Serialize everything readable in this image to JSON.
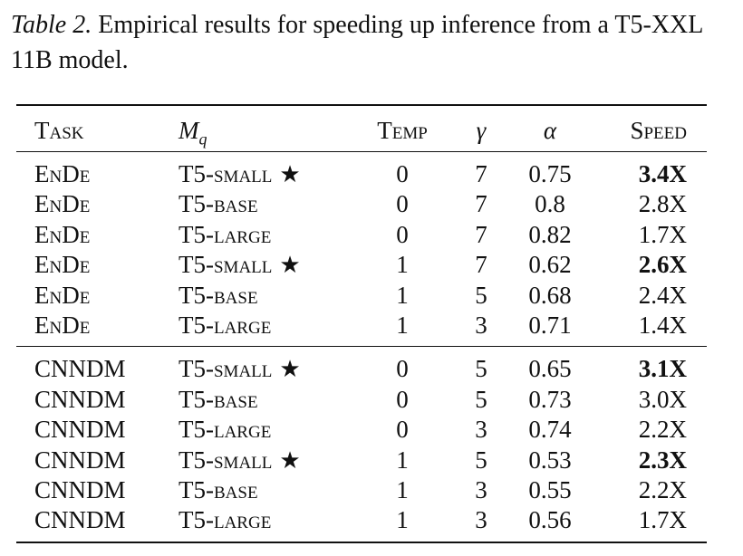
{
  "caption": {
    "label": "Table 2.",
    "text": " Empirical results for speeding up inference from a T5-XXL 11B model."
  },
  "headers": {
    "task": "Task",
    "model_main": "M",
    "model_sub": "q",
    "temp": "Temp",
    "gamma": "γ",
    "alpha": "α",
    "speed": "Speed"
  },
  "groups": [
    {
      "rows": [
        {
          "task": "EnDe",
          "model": "T5-small",
          "star": "★",
          "temp": "0",
          "gamma": "7",
          "alpha": "0.75",
          "speed": "3.4X",
          "bold": true
        },
        {
          "task": "EnDe",
          "model": "T5-base",
          "star": "",
          "temp": "0",
          "gamma": "7",
          "alpha": "0.8",
          "speed": "2.8X",
          "bold": false
        },
        {
          "task": "EnDe",
          "model": "T5-large",
          "star": "",
          "temp": "0",
          "gamma": "7",
          "alpha": "0.82",
          "speed": "1.7X",
          "bold": false
        },
        {
          "task": "EnDe",
          "model": "T5-small",
          "star": "★",
          "temp": "1",
          "gamma": "7",
          "alpha": "0.62",
          "speed": "2.6X",
          "bold": true
        },
        {
          "task": "EnDe",
          "model": "T5-base",
          "star": "",
          "temp": "1",
          "gamma": "5",
          "alpha": "0.68",
          "speed": "2.4X",
          "bold": false
        },
        {
          "task": "EnDe",
          "model": "T5-large",
          "star": "",
          "temp": "1",
          "gamma": "3",
          "alpha": "0.71",
          "speed": "1.4X",
          "bold": false
        }
      ]
    },
    {
      "rows": [
        {
          "task": "CNNDM",
          "model": "T5-small",
          "star": "★",
          "temp": "0",
          "gamma": "5",
          "alpha": "0.65",
          "speed": "3.1X",
          "bold": true
        },
        {
          "task": "CNNDM",
          "model": "T5-base",
          "star": "",
          "temp": "0",
          "gamma": "5",
          "alpha": "0.73",
          "speed": "3.0X",
          "bold": false
        },
        {
          "task": "CNNDM",
          "model": "T5-large",
          "star": "",
          "temp": "0",
          "gamma": "3",
          "alpha": "0.74",
          "speed": "2.2X",
          "bold": false
        },
        {
          "task": "CNNDM",
          "model": "T5-small",
          "star": "★",
          "temp": "1",
          "gamma": "5",
          "alpha": "0.53",
          "speed": "2.3X",
          "bold": true
        },
        {
          "task": "CNNDM",
          "model": "T5-base",
          "star": "",
          "temp": "1",
          "gamma": "3",
          "alpha": "0.55",
          "speed": "2.2X",
          "bold": false
        },
        {
          "task": "CNNDM",
          "model": "T5-large",
          "star": "",
          "temp": "1",
          "gamma": "3",
          "alpha": "0.56",
          "speed": "1.7X",
          "bold": false
        }
      ]
    }
  ]
}
